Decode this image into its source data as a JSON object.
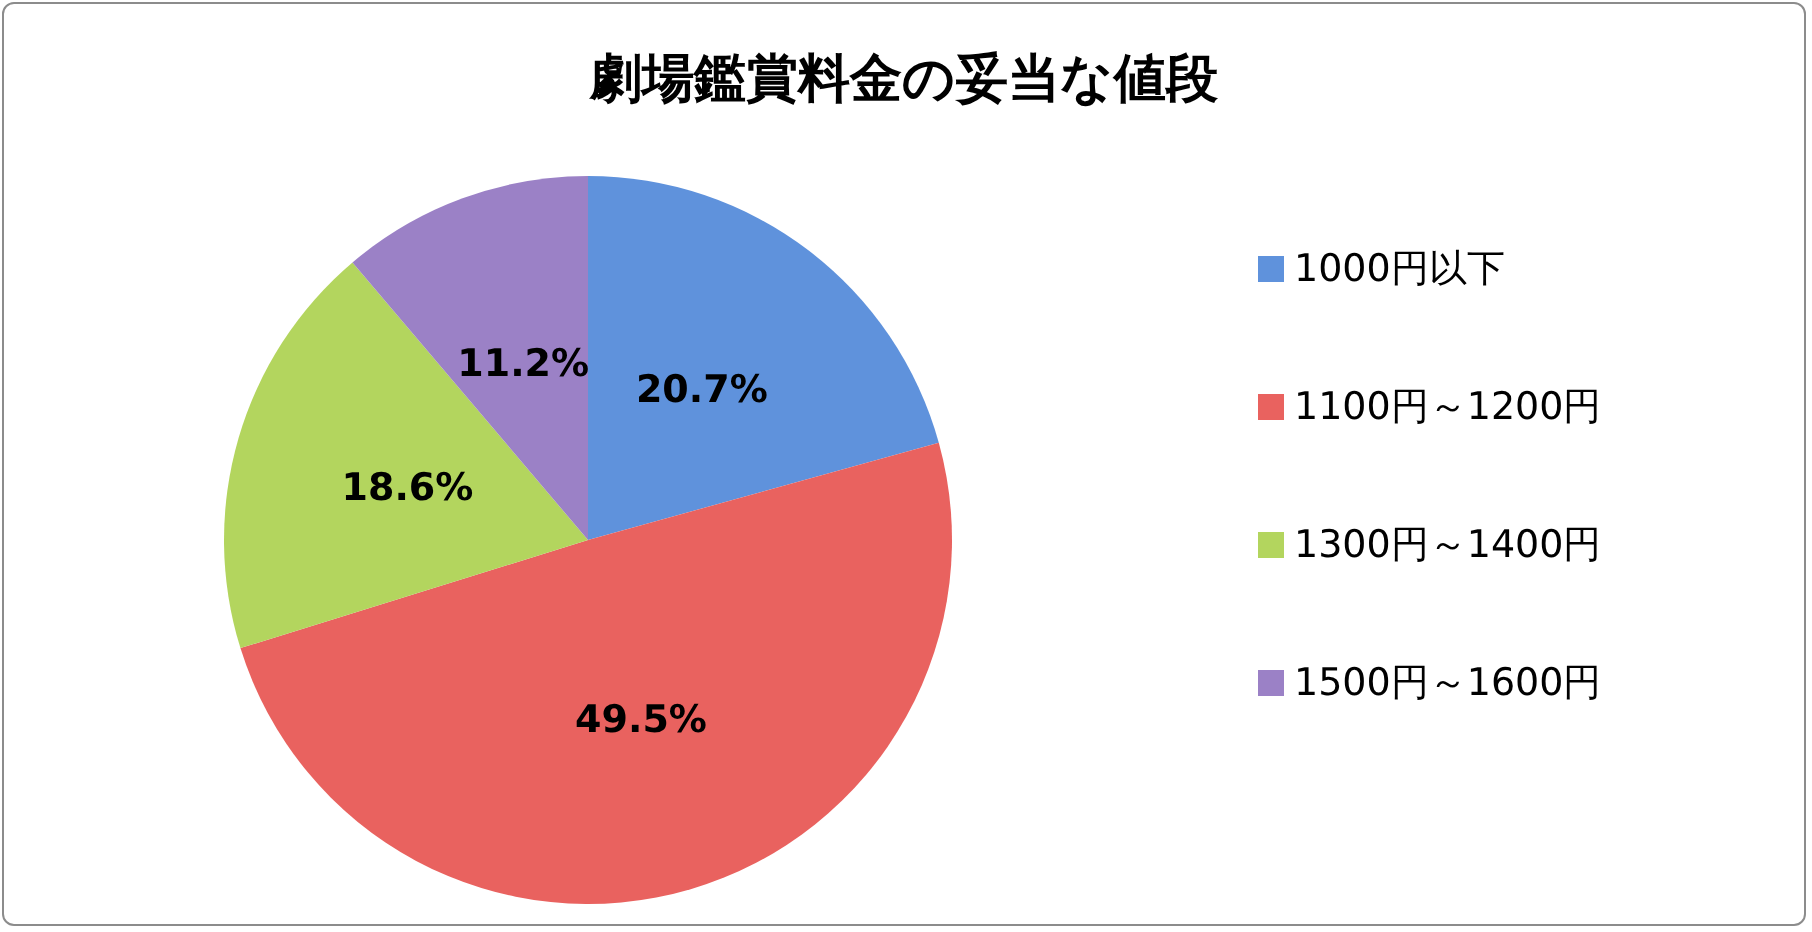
{
  "chart_data": {
    "type": "pie",
    "title": "劇場鑑賞料金の妥当な値段",
    "categories": [
      "1000円以下",
      "1100円～1200円",
      "1300円～1400円",
      "1500円～1600円"
    ],
    "values": [
      20.7,
      49.5,
      18.6,
      11.2
    ],
    "colors": [
      "#5f92dc",
      "#e9625f",
      "#b3d55e",
      "#9b81c6"
    ],
    "value_labels": [
      "20.7%",
      "49.5%",
      "18.6%",
      "11.2%"
    ],
    "legend": "right"
  }
}
